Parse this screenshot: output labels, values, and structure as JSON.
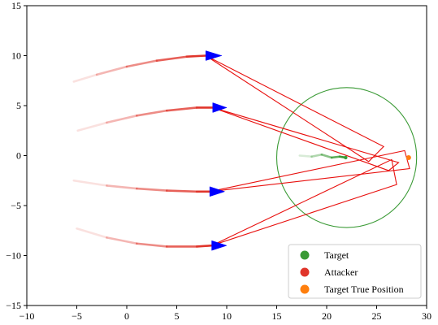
{
  "chart_data": {
    "type": "scatter",
    "title": "",
    "xlabel": "",
    "ylabel": "",
    "xlim": [
      -10,
      30
    ],
    "ylim": [
      -15,
      15
    ],
    "xticks": [
      -10,
      -5,
      0,
      5,
      10,
      15,
      20,
      25,
      30
    ],
    "yticks": [
      -15,
      -10,
      -5,
      0,
      5,
      10,
      15
    ],
    "grid": false,
    "legend_position": "bottom-right",
    "legend": [
      {
        "label": "Target",
        "color": "#3a9a35"
      },
      {
        "label": "Attacker",
        "color": "#e0352b"
      },
      {
        "label": "Target True Position",
        "color": "#ff7f0e"
      }
    ],
    "attackers": [
      {
        "trail": [
          [
            -5.3,
            7.4
          ],
          [
            -3,
            8.1
          ],
          [
            0,
            8.9
          ],
          [
            3,
            9.5
          ],
          [
            6,
            9.9
          ],
          [
            7.9,
            10.0
          ]
        ],
        "arrow_tip": [
          9.5,
          10.0
        ]
      },
      {
        "trail": [
          [
            -4.9,
            2.5
          ],
          [
            -2,
            3.3
          ],
          [
            1,
            4.0
          ],
          [
            4,
            4.5
          ],
          [
            7,
            4.8
          ],
          [
            8.6,
            4.8
          ]
        ],
        "arrow_tip": [
          10.0,
          4.8
        ]
      },
      {
        "trail": [
          [
            -5.3,
            -2.5
          ],
          [
            -2,
            -3.0
          ],
          [
            1,
            -3.3
          ],
          [
            4,
            -3.5
          ],
          [
            7,
            -3.6
          ],
          [
            8.3,
            -3.6
          ]
        ],
        "arrow_tip": [
          9.8,
          -3.6
        ]
      },
      {
        "trail": [
          [
            -5.0,
            -7.3
          ],
          [
            -2,
            -8.2
          ],
          [
            1,
            -8.8
          ],
          [
            4,
            -9.1
          ],
          [
            7,
            -9.1
          ],
          [
            8.5,
            -9.0
          ]
        ],
        "arrow_tip": [
          10.0,
          -9.0
        ]
      }
    ],
    "attack_paths": [
      [
        [
          7.9,
          10.0
        ],
        [
          25.7,
          0.9
        ],
        [
          24.2,
          -0.6
        ],
        [
          7.9,
          10.0
        ]
      ],
      [
        [
          8.6,
          4.8
        ],
        [
          27.2,
          -0.7
        ],
        [
          26.2,
          -1.5
        ],
        [
          8.6,
          4.8
        ]
      ],
      [
        [
          8.3,
          -3.6
        ],
        [
          27.8,
          0.5
        ],
        [
          28.3,
          -1.3
        ],
        [
          8.3,
          -3.6
        ]
      ],
      [
        [
          8.5,
          -9.0
        ],
        [
          26.5,
          -0.4
        ],
        [
          27.0,
          -2.9
        ],
        [
          8.5,
          -9.0
        ]
      ]
    ],
    "target_trail": [
      [
        17.3,
        0.0
      ],
      [
        18.5,
        -0.1
      ],
      [
        19.5,
        0.1
      ],
      [
        20.5,
        -0.2
      ],
      [
        21.3,
        -0.1
      ],
      [
        21.9,
        -0.2
      ]
    ],
    "target_position": [
      21.9,
      -0.2
    ],
    "detection_circle": {
      "center": [
        22.0,
        -0.2
      ],
      "radius": 7.0
    },
    "target_true_position": [
      28.2,
      -0.2
    ]
  }
}
